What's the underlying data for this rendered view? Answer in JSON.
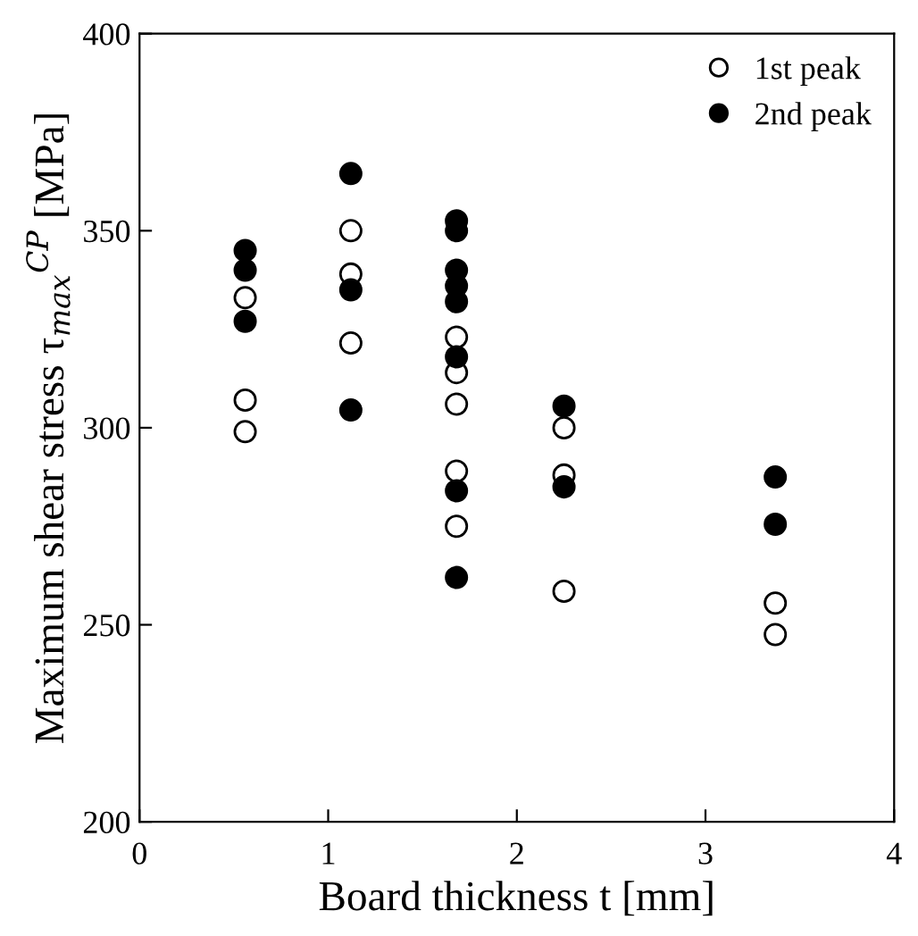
{
  "chart_data": {
    "type": "scatter",
    "xlabel": "Board thickness t [mm]",
    "ylabel": "Maximum shear stress τ$_{max}$$^{CP}$ [MPa]",
    "xlim": [
      0,
      4
    ],
    "ylim": [
      200,
      400
    ],
    "xticks": [
      0,
      1,
      2,
      3,
      4
    ],
    "yticks": [
      200,
      250,
      300,
      350,
      400
    ],
    "grid": false,
    "legend": "top right",
    "marker": "circle",
    "series": [
      {
        "name": "1st peak",
        "color": "#ffffff",
        "x": [
          0.56,
          0.56,
          0.56,
          1.12,
          1.12,
          1.12,
          1.68,
          1.68,
          1.68,
          1.68,
          1.68,
          2.25,
          2.25,
          2.25,
          3.37,
          3.37
        ],
        "values": [
          333,
          307,
          299,
          350,
          339,
          321.5,
          323,
          314,
          306,
          289,
          275,
          300,
          288,
          258.5,
          255.5,
          247.5
        ]
      },
      {
        "name": "2nd peak",
        "color": "#000000",
        "x": [
          0.56,
          0.56,
          0.56,
          1.12,
          1.12,
          1.12,
          1.68,
          1.68,
          1.68,
          1.68,
          1.68,
          1.68,
          1.68,
          1.68,
          2.25,
          2.25,
          3.37,
          3.37
        ],
        "values": [
          345,
          340,
          327,
          364.5,
          335,
          304.5,
          352.5,
          350,
          340,
          336,
          332,
          318,
          284,
          262,
          305.5,
          285,
          287.5,
          275.5
        ]
      }
    ]
  }
}
